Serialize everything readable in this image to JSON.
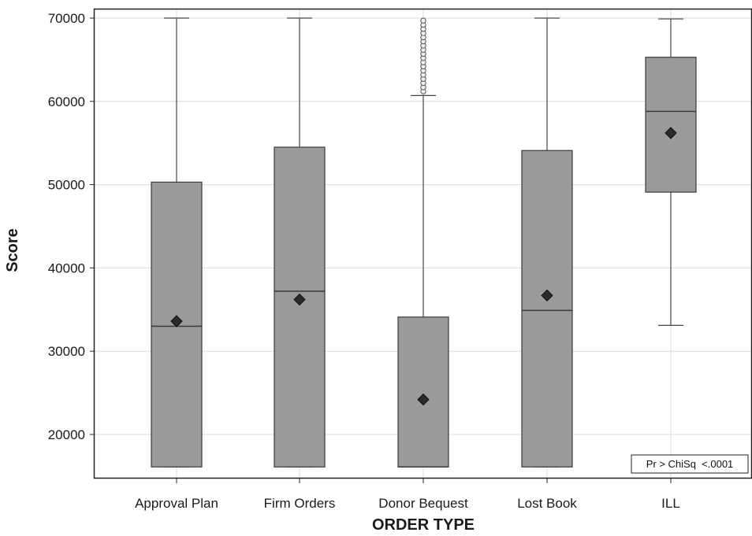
{
  "chart_data": {
    "type": "box",
    "xlabel": "ORDER TYPE",
    "ylabel": "Score",
    "ylim": [
      15000,
      70000
    ],
    "yticks": [
      20000,
      30000,
      40000,
      50000,
      60000,
      70000
    ],
    "grid": true,
    "categories": [
      "Approval Plan",
      "Firm Orders",
      "Donor Bequest",
      "Lost Book",
      "ILL"
    ],
    "boxes": [
      {
        "category": "Approval Plan",
        "whisker_low": 16100,
        "q1": 16100,
        "median": 33000,
        "q3": 50300,
        "whisker_high": 70000,
        "mean": 33600,
        "outliers": []
      },
      {
        "category": "Firm Orders",
        "whisker_low": 16100,
        "q1": 16100,
        "median": 37200,
        "q3": 54500,
        "whisker_high": 70000,
        "mean": 36200,
        "outliers": []
      },
      {
        "category": "Donor Bequest",
        "whisker_low": 16100,
        "q1": 16100,
        "median": 16100,
        "q3": 34100,
        "whisker_high": 60700,
        "mean": 24200,
        "outliers": [
          61200,
          61700,
          62200,
          62700,
          63200,
          63700,
          64200,
          64700,
          65200,
          65700,
          66200,
          66700,
          67200,
          67700,
          68200,
          68700,
          69200,
          69700
        ]
      },
      {
        "category": "Lost Book",
        "whisker_low": 16100,
        "q1": 16100,
        "median": 34900,
        "q3": 54100,
        "whisker_high": 70000,
        "mean": 36700,
        "outliers": []
      },
      {
        "category": "ILL",
        "whisker_low": 33100,
        "q1": 49100,
        "median": 58800,
        "q3": 65300,
        "whisker_high": 69900,
        "mean": 56200,
        "outliers": []
      }
    ],
    "inset_text": "Pr > ChiSq  <.0001",
    "colors": {
      "box_fill": "#9a9a9a",
      "box_stroke": "#3a3a3a",
      "whisker": "#444444",
      "grid": "#d9d9d9",
      "mean_marker": "#2a2a2a"
    }
  }
}
